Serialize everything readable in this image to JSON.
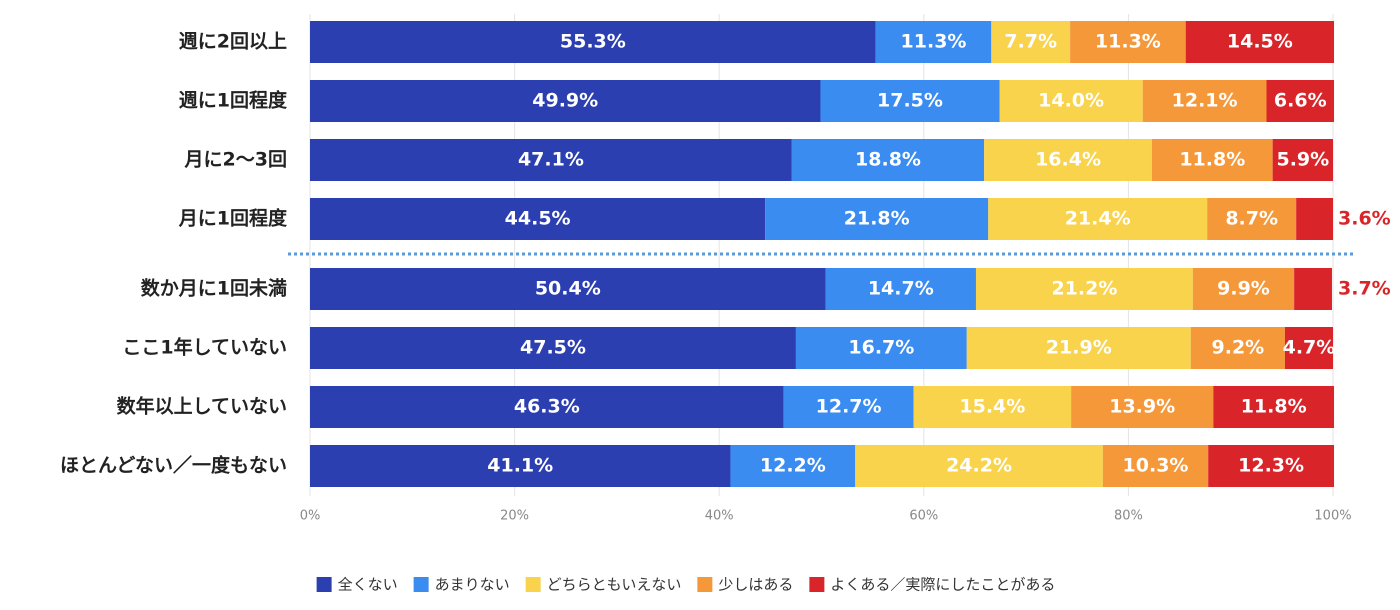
{
  "chart_data": {
    "type": "stacked-bar-horizontal",
    "categories": [
      "週に2回以上",
      "週に1回程度",
      "月に2〜3回",
      "月に1回程度",
      "数か月に1回未満",
      "ここ1年していない",
      "数年以上していない",
      "ほとんどない／一度もない"
    ],
    "series": [
      {
        "name": "全くない",
        "color": "#2b3fb1",
        "values": [
          55.3,
          49.9,
          47.1,
          44.5,
          50.4,
          47.5,
          46.3,
          41.1
        ],
        "value_labels": [
          "55.3%",
          "49.9%",
          "47.1%",
          "44.5%",
          "50.4%",
          "47.5%",
          "46.3%",
          "41.1%"
        ]
      },
      {
        "name": "あまりない",
        "color": "#3a8cf0",
        "values": [
          11.3,
          17.5,
          18.8,
          21.8,
          14.7,
          16.7,
          12.7,
          12.2
        ],
        "value_labels": [
          "11.3%",
          "17.5%",
          "18.8%",
          "21.8%",
          "14.7%",
          "16.7%",
          "12.7%",
          "12.2%"
        ]
      },
      {
        "name": "どちらともいえない",
        "color": "#f8d34b",
        "values": [
          7.7,
          14.0,
          16.4,
          21.4,
          21.2,
          21.9,
          15.4,
          24.2
        ],
        "value_labels": [
          "7.7%",
          "14.0%",
          "16.4%",
          "21.4%",
          "21.2%",
          "21.9%",
          "15.4%",
          "24.2%"
        ]
      },
      {
        "name": "少しはある",
        "color": "#f5983a",
        "values": [
          11.3,
          12.1,
          11.8,
          8.7,
          9.9,
          9.2,
          13.9,
          10.3
        ],
        "value_labels": [
          "11.3%",
          "12.1%",
          "11.8%",
          "8.7%",
          "9.9%",
          "9.2%",
          "13.9%",
          "10.3%"
        ]
      },
      {
        "name": "よくある／実際にしたことがある",
        "color": "#d9252a",
        "values": [
          14.5,
          6.6,
          5.9,
          3.6,
          3.7,
          4.7,
          11.8,
          12.3
        ],
        "value_labels": [
          "14.5%",
          "6.6%",
          "5.9%",
          "3.6%",
          "3.7%",
          "4.7%",
          "11.8%",
          "12.3%"
        ]
      }
    ],
    "xlim": [
      0,
      100
    ],
    "xticks": [
      {
        "value": 0,
        "label": "0%"
      },
      {
        "value": 20,
        "label": "20%"
      },
      {
        "value": 40,
        "label": "40%"
      },
      {
        "value": 60,
        "label": "60%"
      },
      {
        "value": 80,
        "label": "80%"
      },
      {
        "value": 100,
        "label": "100%"
      }
    ],
    "grid": true,
    "legend": "bottom"
  }
}
